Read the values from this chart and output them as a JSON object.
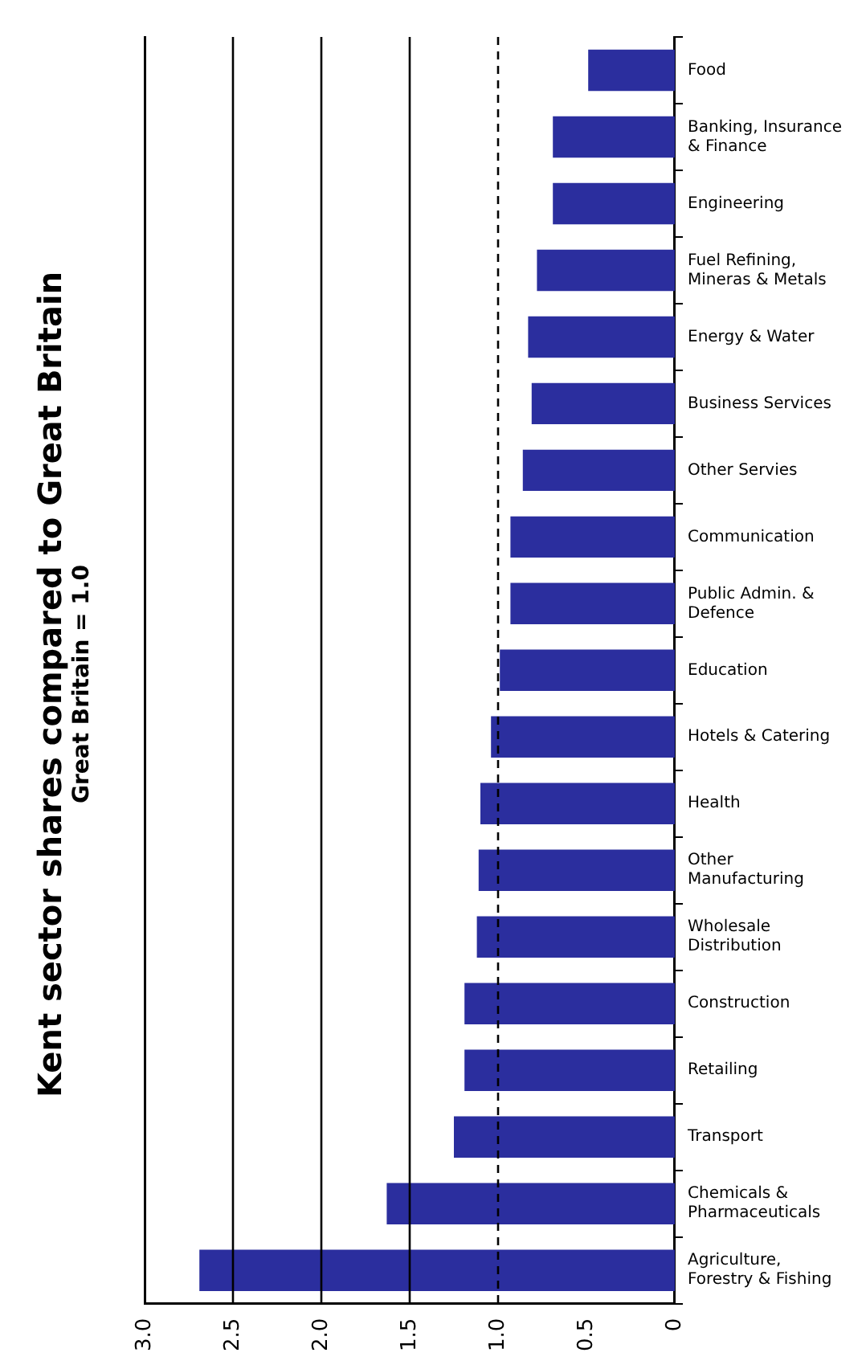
{
  "chart_data": {
    "type": "bar",
    "orientation": "horizontal",
    "title": "Kent sector shares compared to Great Britain",
    "subtitle": "Great Britain = 1.0",
    "categories": [
      "Food",
      "Banking, Insurance & Finance",
      "Engineering",
      "Fuel Refining, Mineras & Metals",
      "Energy & Water",
      "Business Services",
      "Other Servies",
      "Communication",
      "Public Admin. & Defence",
      "Education",
      "Hotels & Catering",
      "Health",
      "Other Manufacturing",
      "Wholesale Distribution",
      "Construction",
      "Retailing",
      "Transport",
      "Chemicals & Pharmaceuticals",
      "Agriculture, Forestry & Fishing"
    ],
    "values": [
      0.49,
      0.69,
      0.69,
      0.78,
      0.83,
      0.81,
      0.86,
      0.93,
      0.93,
      0.99,
      1.04,
      1.1,
      1.11,
      1.12,
      1.19,
      1.19,
      1.25,
      1.63,
      2.69
    ],
    "color": "#2b2e9e",
    "xlim": [
      3.0,
      0
    ],
    "xticks": [
      {
        "value": 3,
        "label": "3.0"
      },
      2.5,
      {
        "value": 2,
        "label": "2.0"
      },
      1.5,
      {
        "value": 1,
        "label": "1.0"
      },
      0.5,
      0
    ],
    "ref_lines": [
      {
        "axis": "x",
        "value": 1.0,
        "line_style": "dashed"
      },
      {
        "axis": "x",
        "value": 1.5,
        "line_style": "solid"
      },
      {
        "axis": "x",
        "value": 2.0,
        "line_style": "solid"
      },
      {
        "axis": "x",
        "value": 2.5,
        "line_style": "solid"
      }
    ],
    "grid": false,
    "legend": false
  }
}
